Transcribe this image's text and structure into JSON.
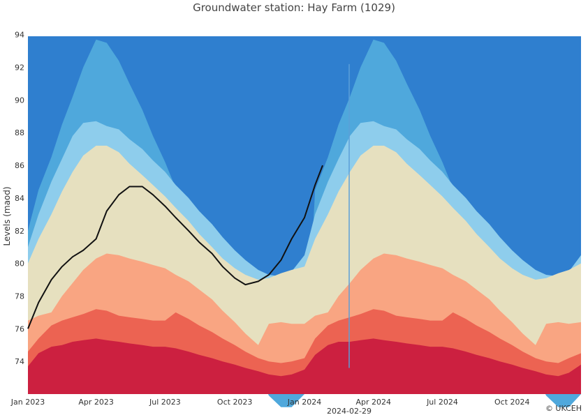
{
  "chart_data": {
    "type": "area",
    "title": "Groundwater station: Hay Farm (1029)",
    "ylabel": "Levels (maod)",
    "ylim": [
      72.0,
      93.9
    ],
    "xlim": [
      "2023-01-01",
      "2024-12-31"
    ],
    "x_ticks": [
      "Jan 2023",
      "Apr 2023",
      "Jul 2023",
      "Oct 2023",
      "Jan 2024",
      "Apr 2024",
      "Jul 2024",
      "Oct 2024"
    ],
    "x_tick_dates": [
      "2023-01-01",
      "2023-04-01",
      "2023-07-01",
      "2023-10-01",
      "2024-01-01",
      "2024-04-01",
      "2024-07-01",
      "2024-10-01"
    ],
    "extra_x_label": "2024-02-29",
    "y_ticks": [
      74,
      76,
      78,
      80,
      82,
      84,
      86,
      88,
      90,
      92,
      94
    ],
    "grid": true,
    "legend": "none",
    "credit": "© UKCEH",
    "bands": {
      "dates": [
        "2023-01-01",
        "2023-01-15",
        "2023-02-01",
        "2023-02-15",
        "2023-03-01",
        "2023-03-15",
        "2023-04-01",
        "2023-04-15",
        "2023-05-01",
        "2023-05-15",
        "2023-06-01",
        "2023-06-15",
        "2023-07-01",
        "2023-07-15",
        "2023-08-01",
        "2023-08-15",
        "2023-09-01",
        "2023-09-15",
        "2023-10-01",
        "2023-10-15",
        "2023-11-01",
        "2023-11-15",
        "2023-12-01",
        "2023-12-15",
        "2024-01-01",
        "2024-01-15",
        "2024-02-01",
        "2024-02-15",
        "2024-03-01",
        "2024-03-15",
        "2024-04-01",
        "2024-04-15",
        "2024-05-01",
        "2024-05-15",
        "2024-06-01",
        "2024-06-15",
        "2024-07-01",
        "2024-07-15",
        "2024-08-01",
        "2024-08-15",
        "2024-09-01",
        "2024-09-15",
        "2024-10-01",
        "2024-10-15",
        "2024-11-01",
        "2024-11-15",
        "2024-12-01",
        "2024-12-15",
        "2024-12-31"
      ],
      "series": [
        {
          "color": "#cc2040",
          "values": [
            73.7,
            74.5,
            74.9,
            75.0,
            75.2,
            75.3,
            75.4,
            75.3,
            75.2,
            75.1,
            75.0,
            74.9,
            74.9,
            74.8,
            74.6,
            74.4,
            74.2,
            74.0,
            73.8,
            73.6,
            73.4,
            73.2,
            73.1,
            73.2,
            73.5,
            74.4,
            75.0,
            75.2,
            75.2,
            75.3,
            75.4,
            75.3,
            75.2,
            75.1,
            75.0,
            74.9,
            74.9,
            74.8,
            74.6,
            74.4,
            74.2,
            74.0,
            73.8,
            73.6,
            73.4,
            73.2,
            73.1,
            73.3,
            73.8
          ]
        },
        {
          "color": "#ec6352",
          "values": [
            74.6,
            75.4,
            76.2,
            76.5,
            76.7,
            76.9,
            77.2,
            77.1,
            76.8,
            76.7,
            76.6,
            76.5,
            76.5,
            77.0,
            76.6,
            76.2,
            75.8,
            75.4,
            75.0,
            74.6,
            74.2,
            74.0,
            73.9,
            74.0,
            74.2,
            75.4,
            76.2,
            76.5,
            76.7,
            76.9,
            77.2,
            77.1,
            76.8,
            76.7,
            76.6,
            76.5,
            76.5,
            77.0,
            76.6,
            76.2,
            75.8,
            75.4,
            75.0,
            74.6,
            74.2,
            74.0,
            73.9,
            74.2,
            74.5
          ]
        },
        {
          "color": "#f9a582",
          "values": [
            76.5,
            76.8,
            77.0,
            78.0,
            78.8,
            79.6,
            80.3,
            80.6,
            80.5,
            80.3,
            80.1,
            79.9,
            79.7,
            79.3,
            78.9,
            78.4,
            77.8,
            77.1,
            76.4,
            75.7,
            75.0,
            76.3,
            76.4,
            76.3,
            76.3,
            76.8,
            77.0,
            78.0,
            78.8,
            79.6,
            80.3,
            80.6,
            80.5,
            80.3,
            80.1,
            79.9,
            79.7,
            79.3,
            78.9,
            78.4,
            77.8,
            77.1,
            76.4,
            75.7,
            75.0,
            76.3,
            76.4,
            76.3,
            76.4
          ]
        },
        {
          "color": "#e6e0bf",
          "values": [
            80.0,
            81.5,
            83.0,
            84.4,
            85.6,
            86.6,
            87.2,
            87.2,
            86.8,
            86.1,
            85.4,
            84.8,
            84.1,
            83.4,
            82.6,
            81.8,
            81.0,
            80.3,
            79.7,
            79.3,
            79.0,
            79.1,
            79.4,
            79.6,
            79.8,
            81.5,
            83.0,
            84.4,
            85.6,
            86.6,
            87.2,
            87.2,
            86.8,
            86.1,
            85.4,
            84.8,
            84.1,
            83.4,
            82.6,
            81.8,
            81.0,
            80.3,
            79.7,
            79.3,
            79.0,
            79.1,
            79.4,
            79.6,
            80.0
          ]
        },
        {
          "color": "#8ecdec",
          "values": [
            81.0,
            83.0,
            85.0,
            86.4,
            87.8,
            88.6,
            88.7,
            88.4,
            88.2,
            87.6,
            87.0,
            86.3,
            85.6,
            84.8,
            84.0,
            83.2,
            82.4,
            81.6,
            80.8,
            80.2,
            79.6,
            79.3,
            79.2,
            79.5,
            80.5,
            83.0,
            85.0,
            86.4,
            87.8,
            88.6,
            88.7,
            88.4,
            88.2,
            87.6,
            87.0,
            86.3,
            85.6,
            84.8,
            84.0,
            83.2,
            82.4,
            81.6,
            80.8,
            80.2,
            79.6,
            79.3,
            79.2,
            79.5,
            80.5
          ]
        },
        {
          "color": "#4fa8dc",
          "values": [
            82.0,
            84.5,
            86.5,
            88.5,
            90.2,
            92.0,
            93.7,
            93.5,
            92.4,
            91.0,
            89.4,
            87.8,
            86.2,
            84.6,
            83.0,
            81.6,
            80.2,
            78.7,
            76.8,
            75.0,
            73.2,
            71.9,
            71.2,
            71.2,
            72.0,
            84.5,
            86.5,
            88.5,
            90.2,
            92.0,
            93.7,
            93.5,
            92.4,
            91.0,
            89.4,
            87.8,
            86.2,
            84.6,
            83.0,
            81.6,
            80.2,
            78.7,
            76.8,
            75.0,
            73.2,
            71.9,
            71.2,
            71.2,
            72.0
          ]
        },
        {
          "color": "#2f7fcf",
          "values": [
            93.9,
            93.9,
            93.9,
            93.9,
            93.9,
            93.9,
            93.9,
            93.9,
            93.9,
            93.9,
            93.9,
            93.9,
            93.9,
            93.9,
            93.9,
            93.9,
            93.9,
            93.9,
            93.9,
            93.9,
            93.9,
            93.9,
            93.9,
            93.9,
            93.9,
            93.9,
            93.9,
            93.9,
            93.9,
            93.9,
            93.9,
            93.9,
            93.9,
            93.9,
            93.9,
            93.9,
            93.9,
            93.9,
            93.9,
            93.9,
            93.9,
            93.9,
            93.9,
            93.9,
            93.9,
            93.9,
            93.9,
            93.9,
            93.9
          ]
        }
      ]
    },
    "series": [
      {
        "color": "#111111",
        "x": [
          "2023-01-01",
          "2023-01-15",
          "2023-02-01",
          "2023-02-15",
          "2023-03-01",
          "2023-03-15",
          "2023-04-01",
          "2023-04-15",
          "2023-05-01",
          "2023-05-15",
          "2023-06-01",
          "2023-06-15",
          "2023-07-01",
          "2023-07-15",
          "2023-08-01",
          "2023-08-15",
          "2023-09-01",
          "2023-09-15",
          "2023-10-01",
          "2023-10-15",
          "2023-11-01",
          "2023-11-15",
          "2023-12-01",
          "2023-12-15",
          "2024-01-01",
          "2024-01-15",
          "2024-01-25"
        ],
        "values": [
          76.0,
          77.6,
          79.0,
          79.8,
          80.4,
          80.8,
          81.5,
          83.2,
          84.2,
          84.7,
          84.7,
          84.2,
          83.5,
          82.8,
          82.0,
          81.3,
          80.6,
          79.8,
          79.1,
          78.7,
          78.9,
          79.3,
          80.2,
          81.5,
          82.8,
          84.8,
          86.0
        ]
      }
    ],
    "annotations": [
      {
        "x": "2024-02-29",
        "type": "vertical-line",
        "color": "#5b9fd8"
      }
    ]
  }
}
